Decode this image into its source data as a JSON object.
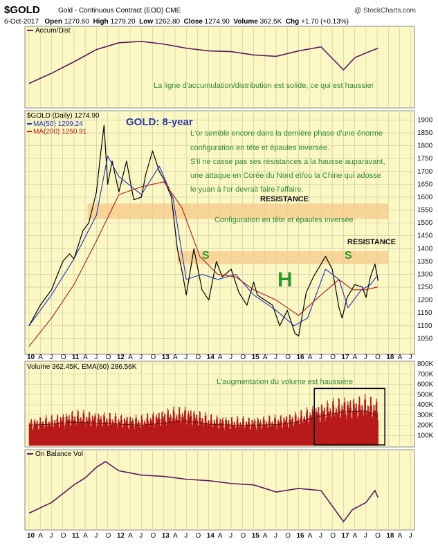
{
  "header": {
    "symbol": "$GOLD",
    "description": "Gold - Continuous Contract (EOD)",
    "exchange": "CME",
    "brand": "@ StockCharts.com",
    "date": "6-Oct-2017",
    "open_label": "Open",
    "open": "1270.60",
    "high_label": "High",
    "high": "1279.20",
    "low_label": "Low",
    "low": "1262.80",
    "close_label": "Close",
    "close": "1274.90",
    "volume_label": "Volume",
    "volume": "362.5K",
    "chg_label": "Chg",
    "chg": "+1.70 (+0.13%)"
  },
  "colors": {
    "panel_bg": "#fbf8c4",
    "price": "#000000",
    "ma50": "#1f2fbf",
    "ma200": "#b01818",
    "indicator": "#5a1860",
    "volume": "#b81a1a",
    "annotation": "#2e8b2e"
  },
  "x_axis": {
    "ticks": [
      "10",
      "A",
      "J",
      "O",
      "11",
      "A",
      "J",
      "O",
      "12",
      "A",
      "J",
      "O",
      "13",
      "A",
      "J",
      "O",
      "14",
      "A",
      "J",
      "O",
      "15",
      "A",
      "J",
      "O",
      "16",
      "A",
      "J",
      "O",
      "17",
      "A",
      "J",
      "O",
      "18",
      "A",
      "J"
    ]
  },
  "chart_data": [
    {
      "panel": "accum_dist",
      "type": "line",
      "legend": "Accum/Dist",
      "annotation": "La ligne d'accumulation/distribution est solide, ce qui est haussier",
      "x": [
        2010.0,
        2010.5,
        2011.0,
        2011.5,
        2011.75,
        2012.0,
        2012.5,
        2013.0,
        2013.5,
        2014.0,
        2014.5,
        2015.0,
        2015.5,
        2016.0,
        2016.5,
        2017.0,
        2017.25,
        2017.5,
        2017.77
      ],
      "values": [
        0.3,
        0.45,
        0.62,
        0.8,
        0.85,
        0.9,
        0.92,
        0.88,
        0.82,
        0.78,
        0.77,
        0.72,
        0.7,
        0.78,
        0.84,
        0.5,
        0.68,
        0.75,
        0.82
      ]
    },
    {
      "panel": "price",
      "type": "line",
      "legend": [
        {
          "name": "$GOLD (Daily)",
          "value": "1274.90"
        },
        {
          "name": "MA(50)",
          "value": "1299.24"
        },
        {
          "name": "MA(200)",
          "value": "1250.91"
        }
      ],
      "title": "GOLD: 8-year",
      "commentary": [
        "L'or semble encore dans la dernière phase d'une énorme",
        "configuration en tête et épaules inversée.",
        "S'il ne casse pas ses résistances à la hausse auparavant,",
        "une attaque en Corée du Nord et/ou la Chine qui adosse",
        "le yuan à l'or devrait faire l'affaire."
      ],
      "resistance_label": "RESISTANCE",
      "pattern_label": "Configuration en tête et épaules inversée",
      "shoulder_label": "S",
      "head_label": "H",
      "resistance_zones": [
        {
          "from_year": 2011.3,
          "to_year": 2018.0,
          "low": 1515,
          "high": 1575
        },
        {
          "from_year": 2013.3,
          "to_year": 2018.0,
          "low": 1340,
          "high": 1390
        }
      ],
      "ylim": [
        1000,
        1920
      ],
      "y_ticks": [
        1050,
        1100,
        1150,
        1200,
        1250,
        1300,
        1350,
        1400,
        1450,
        1500,
        1550,
        1600,
        1650,
        1700,
        1750,
        1800,
        1850,
        1900
      ],
      "series": [
        {
          "name": "$GOLD (Daily)",
          "x": [
            2010.0,
            2010.25,
            2010.5,
            2010.75,
            2010.9,
            2011.0,
            2011.2,
            2011.33,
            2011.5,
            2011.6,
            2011.67,
            2011.75,
            2011.85,
            2012.0,
            2012.17,
            2012.33,
            2012.5,
            2012.6,
            2012.75,
            2012.9,
            2013.0,
            2013.17,
            2013.3,
            2013.42,
            2013.5,
            2013.67,
            2013.85,
            2014.0,
            2014.17,
            2014.3,
            2014.5,
            2014.67,
            2014.85,
            2015.0,
            2015.08,
            2015.25,
            2015.42,
            2015.58,
            2015.75,
            2015.92,
            2016.0,
            2016.17,
            2016.33,
            2016.5,
            2016.6,
            2016.75,
            2016.9,
            2016.97,
            2017.08,
            2017.25,
            2017.42,
            2017.5,
            2017.6,
            2017.7,
            2017.77
          ],
          "values": [
            1100,
            1180,
            1240,
            1350,
            1380,
            1360,
            1470,
            1500,
            1620,
            1780,
            1880,
            1650,
            1740,
            1620,
            1740,
            1590,
            1600,
            1690,
            1780,
            1700,
            1670,
            1600,
            1400,
            1300,
            1220,
            1400,
            1240,
            1200,
            1350,
            1290,
            1320,
            1230,
            1180,
            1270,
            1220,
            1200,
            1180,
            1100,
            1160,
            1070,
            1060,
            1230,
            1290,
            1340,
            1370,
            1320,
            1170,
            1130,
            1210,
            1260,
            1250,
            1210,
            1290,
            1340,
            1275
          ]
        },
        {
          "name": "MA(50)",
          "x": [
            2010.0,
            2010.5,
            2011.0,
            2011.5,
            2011.75,
            2012.0,
            2012.5,
            2012.9,
            2013.2,
            2013.5,
            2013.85,
            2014.2,
            2014.6,
            2015.0,
            2015.5,
            2015.9,
            2016.2,
            2016.6,
            2016.9,
            2017.1,
            2017.4,
            2017.6,
            2017.77
          ],
          "values": [
            1100,
            1220,
            1360,
            1530,
            1760,
            1680,
            1610,
            1720,
            1600,
            1280,
            1300,
            1280,
            1300,
            1220,
            1160,
            1100,
            1130,
            1320,
            1280,
            1170,
            1240,
            1260,
            1299
          ]
        },
        {
          "name": "MA(200)",
          "x": [
            2010.0,
            2010.5,
            2011.0,
            2011.5,
            2012.0,
            2012.5,
            2013.0,
            2013.4,
            2013.8,
            2014.2,
            2014.6,
            2015.0,
            2015.5,
            2016.0,
            2016.5,
            2016.9,
            2017.2,
            2017.5,
            2017.77
          ],
          "values": [
            1020,
            1130,
            1260,
            1430,
            1610,
            1640,
            1660,
            1560,
            1370,
            1300,
            1290,
            1240,
            1200,
            1140,
            1220,
            1280,
            1240,
            1240,
            1251
          ]
        }
      ]
    },
    {
      "panel": "volume",
      "type": "bar",
      "legend": [
        {
          "name": "Volume",
          "value": "362.45K"
        },
        {
          "name": "EMA(60)",
          "value": "286.56K"
        }
      ],
      "annotation": "L'augmentation du volume est haussière",
      "ylim": [
        0,
        800
      ],
      "y_ticks": [
        "100K",
        "200K",
        "300K",
        "400K",
        "500K",
        "600K",
        "700K",
        "800K"
      ],
      "highlight_box": {
        "from_year": 2016.35,
        "to_year": 2017.92
      },
      "x": [
        2010.0,
        2010.5,
        2011.0,
        2011.5,
        2012.0,
        2012.5,
        2013.0,
        2013.5,
        2014.0,
        2014.5,
        2015.0,
        2015.5,
        2016.0,
        2016.5,
        2017.0,
        2017.5,
        2017.77
      ],
      "values": [
        210,
        230,
        270,
        260,
        240,
        230,
        280,
        300,
        240,
        220,
        220,
        230,
        260,
        330,
        370,
        380,
        362
      ],
      "ema_values": [
        200,
        210,
        230,
        220,
        210,
        200,
        220,
        240,
        210,
        200,
        200,
        205,
        230,
        290,
        330,
        340,
        287
      ]
    },
    {
      "panel": "on_balance_volume",
      "type": "line",
      "legend": "On Balance Vol",
      "x": [
        2010.0,
        2010.5,
        2011.0,
        2011.25,
        2011.5,
        2011.7,
        2012.0,
        2012.5,
        2013.0,
        2013.5,
        2014.0,
        2014.5,
        2015.0,
        2015.5,
        2016.0,
        2016.5,
        2017.0,
        2017.2,
        2017.5,
        2017.7,
        2017.77
      ],
      "values": [
        0.2,
        0.35,
        0.6,
        0.7,
        0.85,
        0.93,
        0.8,
        0.74,
        0.72,
        0.68,
        0.66,
        0.62,
        0.6,
        0.5,
        0.55,
        0.52,
        0.08,
        0.25,
        0.35,
        0.52,
        0.42
      ]
    }
  ]
}
